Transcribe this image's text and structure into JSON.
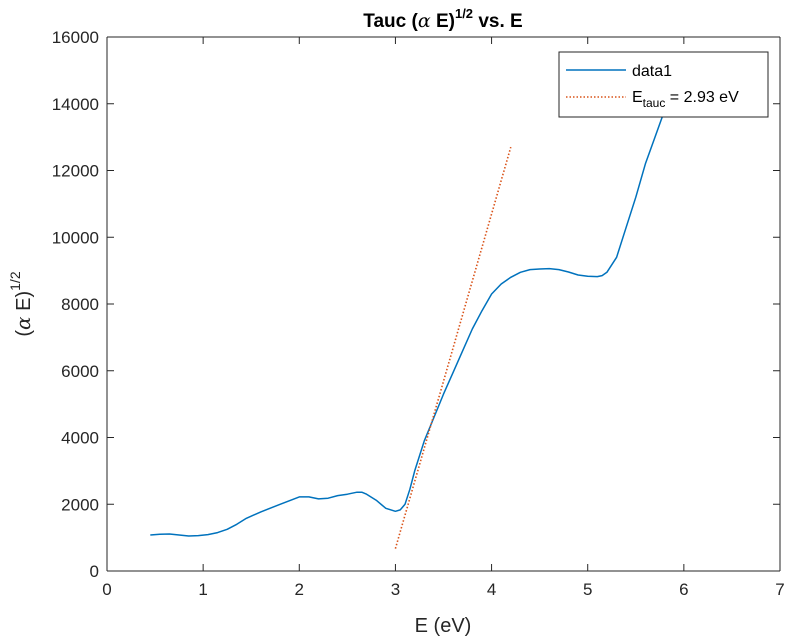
{
  "chart_data": {
    "type": "line",
    "title": {
      "main": "Tauc (",
      "alpha": "α",
      "mid": " E)",
      "sup": "1/2",
      "tail": " vs. E"
    },
    "xlabel": "E (eV)",
    "ylabel": {
      "main": "(",
      "alpha": "α",
      "mid": " E)",
      "sup": "1/2"
    },
    "xlim": [
      0,
      7
    ],
    "ylim": [
      0,
      16000
    ],
    "xticks": [
      0,
      1,
      2,
      3,
      4,
      5,
      6,
      7
    ],
    "yticks": [
      0,
      2000,
      4000,
      6000,
      8000,
      10000,
      12000,
      14000,
      16000
    ],
    "grid": false,
    "legend_position": "top-right",
    "series": [
      {
        "name": "data1",
        "style": "solid",
        "color": "#0072BD",
        "x": [
          0.45,
          0.55,
          0.65,
          0.75,
          0.85,
          0.95,
          1.05,
          1.15,
          1.25,
          1.35,
          1.45,
          1.6,
          1.8,
          2.0,
          2.1,
          2.2,
          2.3,
          2.4,
          2.5,
          2.6,
          2.65,
          2.7,
          2.8,
          2.9,
          3.0,
          3.05,
          3.1,
          3.15,
          3.2,
          3.3,
          3.4,
          3.5,
          3.6,
          3.7,
          3.8,
          3.9,
          4.0,
          4.1,
          4.2,
          4.3,
          4.4,
          4.5,
          4.6,
          4.7,
          4.8,
          4.9,
          5.0,
          5.1,
          5.15,
          5.2,
          5.3,
          5.4,
          5.5,
          5.6,
          5.7,
          5.8,
          5.86
        ],
        "y": [
          1080,
          1100,
          1110,
          1080,
          1050,
          1060,
          1090,
          1150,
          1250,
          1400,
          1580,
          1770,
          2000,
          2220,
          2220,
          2160,
          2180,
          2260,
          2300,
          2360,
          2360,
          2300,
          2120,
          1880,
          1790,
          1830,
          2000,
          2450,
          3000,
          3900,
          4600,
          5300,
          5950,
          6600,
          7250,
          7800,
          8300,
          8600,
          8800,
          8950,
          9030,
          9050,
          9060,
          9030,
          8960,
          8870,
          8830,
          8820,
          8850,
          8950,
          9400,
          10300,
          11200,
          12200,
          13000,
          13800,
          14300
        ]
      },
      {
        "name": "E_tauc = 2.93 eV",
        "legend_base": "E",
        "legend_sub": "tauc",
        "legend_tail": " = 2.93 eV",
        "style": "dotted",
        "color": "#D95319",
        "x": [
          3.0,
          4.2
        ],
        "y": [
          670,
          12700
        ]
      }
    ]
  }
}
